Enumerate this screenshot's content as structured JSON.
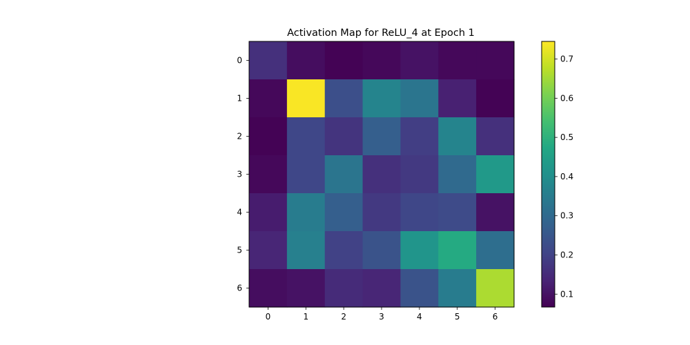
{
  "chart_data": {
    "type": "heatmap",
    "title": "Activation Map for ReLU_4 at Epoch 1",
    "x_tick_labels": [
      "0",
      "1",
      "2",
      "3",
      "4",
      "5",
      "6"
    ],
    "y_tick_labels": [
      "0",
      "1",
      "2",
      "3",
      "4",
      "5",
      "6"
    ],
    "xlabel": "",
    "ylabel": "",
    "values": [
      [
        0.16,
        0.09,
        0.07,
        0.08,
        0.1,
        0.08,
        0.08
      ],
      [
        0.08,
        0.74,
        0.23,
        0.37,
        0.33,
        0.13,
        0.07
      ],
      [
        0.07,
        0.21,
        0.17,
        0.27,
        0.19,
        0.37,
        0.16
      ],
      [
        0.08,
        0.21,
        0.33,
        0.16,
        0.18,
        0.3,
        0.43
      ],
      [
        0.12,
        0.35,
        0.27,
        0.18,
        0.21,
        0.22,
        0.1
      ],
      [
        0.14,
        0.36,
        0.2,
        0.24,
        0.42,
        0.48,
        0.31
      ],
      [
        0.09,
        0.1,
        0.15,
        0.14,
        0.24,
        0.35,
        0.66
      ]
    ],
    "colormap": "viridis",
    "color_range": [
      0.067,
      0.745
    ],
    "colorbar_ticks": [
      0.1,
      0.2,
      0.3,
      0.4,
      0.5,
      0.6,
      0.7
    ]
  }
}
